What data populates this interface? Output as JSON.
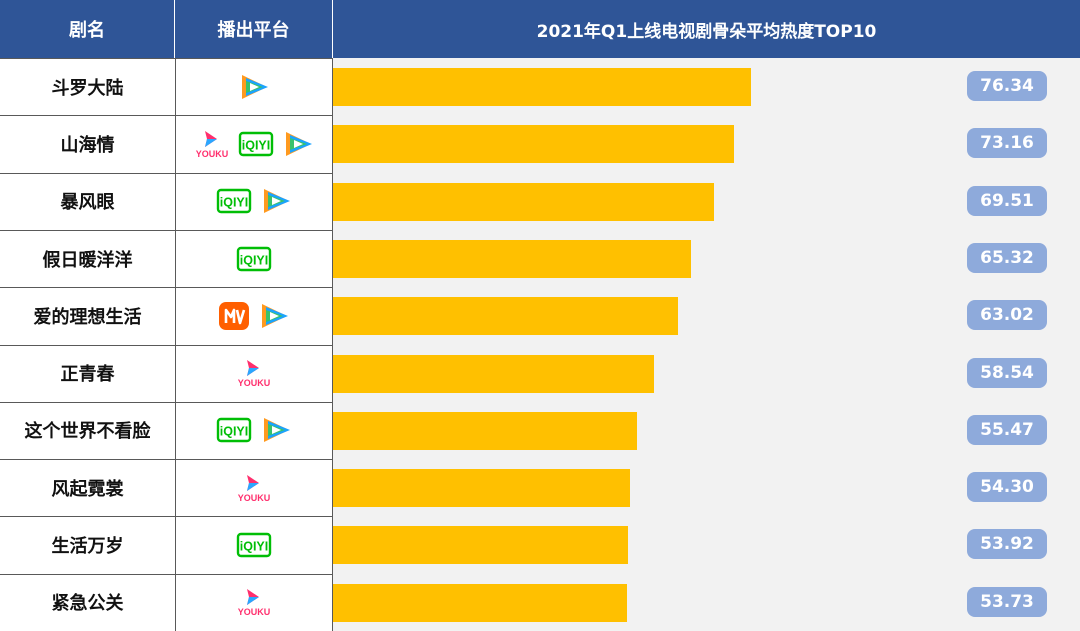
{
  "header": {
    "name_col": "剧名",
    "platform_col": "播出平台",
    "chart_title": "2021年Q1上线电视剧骨朵平均热度TOP10"
  },
  "colors": {
    "header_bg": "#2f5597",
    "bar": "#ffc000",
    "value_badge": "#8eaadb"
  },
  "platform_icons": {
    "youku": {
      "icon": "youku-icon",
      "text": "YOUKU"
    },
    "iqiyi": {
      "icon": "iqiyi-icon",
      "text": "iQIYI"
    },
    "tencent": {
      "icon": "tencent-video-icon"
    },
    "mgtv": {
      "icon": "mango-tv-icon"
    }
  },
  "chart_data": {
    "type": "bar",
    "orientation": "horizontal",
    "title": "2021年Q1上线电视剧骨朵平均热度TOP10",
    "categories": [
      "斗罗大陆",
      "山海情",
      "暴风眼",
      "假日暖洋洋",
      "爱的理想生活",
      "正青春",
      "这个世界不看脸",
      "风起霓裳",
      "生活万岁",
      "紧急公关"
    ],
    "values": [
      76.34,
      73.16,
      69.51,
      65.32,
      63.02,
      58.54,
      55.47,
      54.3,
      53.92,
      53.73
    ],
    "value_labels": [
      "76.34",
      "73.16",
      "69.51",
      "65.32",
      "63.02",
      "58.54",
      "55.47",
      "54.30",
      "53.92",
      "53.73"
    ],
    "platforms": [
      [
        "tencent"
      ],
      [
        "youku",
        "iqiyi",
        "tencent"
      ],
      [
        "iqiyi",
        "tencent"
      ],
      [
        "iqiyi"
      ],
      [
        "mgtv",
        "tencent"
      ],
      [
        "youku"
      ],
      [
        "iqiyi",
        "tencent"
      ],
      [
        "youku"
      ],
      [
        "iqiyi"
      ],
      [
        "youku"
      ]
    ],
    "grid": false,
    "legend": "none"
  }
}
